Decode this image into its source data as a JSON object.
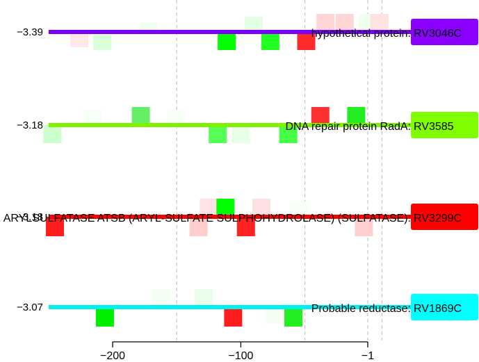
{
  "chart_data": {
    "type": "bar",
    "x_ticks": [
      {
        "value": -200,
        "label": "−200"
      },
      {
        "value": -100,
        "label": "−100"
      },
      {
        "value": -1,
        "label": "−1"
      }
    ],
    "xlim": [
      -245,
      30
    ],
    "dashed_lines_x": [
      -150,
      -50,
      -1,
      10
    ],
    "rows": [
      {
        "score": "−3.39",
        "label": "hypothetical protein: RV3046C",
        "color": "#8B00FF",
        "line_color": "#7B00FF",
        "bars": [
          {
            "x": -172,
            "h": 0.35,
            "fill": "#f1fff1",
            "alpha": 1
          },
          {
            "x": -90,
            "h": 0.55,
            "fill": "#e2ffe2",
            "alpha": 1
          },
          {
            "x": -34,
            "h": 0.65,
            "fill": "#ffd6d6",
            "alpha": 1
          },
          {
            "x": -19,
            "h": 0.65,
            "fill": "#ffd6d6",
            "alpha": 1
          },
          {
            "x": -1,
            "h": 0.65,
            "fill": "#efffef",
            "alpha": 1
          },
          {
            "x": 8,
            "h": 0.65,
            "fill": "#ffe2e2",
            "alpha": 1
          },
          {
            "x": -226,
            "h": -0.55,
            "fill": "#ffe8e8",
            "alpha": 1
          },
          {
            "x": -208,
            "h": -0.65,
            "fill": "#d9ffd9",
            "alpha": 1
          },
          {
            "x": -111,
            "h": -0.65,
            "fill": "#00ff00",
            "alpha": 1
          },
          {
            "x": -77,
            "h": -0.65,
            "fill": "#22ff22",
            "alpha": 1
          },
          {
            "x": -49,
            "h": -0.65,
            "fill": "#ff2a2a",
            "alpha": 1
          }
        ]
      },
      {
        "score": "−3.18",
        "label": "DNA repair protein RadA: RV3585",
        "color": "#7FFF00",
        "line_color": "#80F200",
        "bars": [
          {
            "x": -216,
            "h": 0.55,
            "fill": "#f6fff6",
            "alpha": 1
          },
          {
            "x": -178,
            "h": 0.65,
            "fill": "#66ee66",
            "alpha": 1
          },
          {
            "x": -150,
            "h": 0.55,
            "fill": "#f7fff7",
            "alpha": 1
          },
          {
            "x": -38,
            "h": 0.65,
            "fill": "#ff3030",
            "alpha": 1
          },
          {
            "x": -10,
            "h": 0.65,
            "fill": "#22ee22",
            "alpha": 1
          },
          {
            "x": -247,
            "h": -0.65,
            "fill": "#ccffcc",
            "alpha": 1
          },
          {
            "x": -118,
            "h": -0.65,
            "fill": "#55ff55",
            "alpha": 1
          },
          {
            "x": -100,
            "h": -0.65,
            "fill": "#e6ffe6",
            "alpha": 1
          },
          {
            "x": -63,
            "h": -0.65,
            "fill": "#44ff44",
            "alpha": 1
          }
        ]
      },
      {
        "score": "−3.18",
        "label": "ARYLSULFATASE ATSB (ARYL-SULFATE SULPHOHYDROLASE) (SULFATASE): RV3299C",
        "color": "#FF0000",
        "line_color": "#FF0000",
        "bars": [
          {
            "x": -125,
            "h": 0.65,
            "fill": "#ffe2e2",
            "alpha": 1
          },
          {
            "x": -112,
            "h": 0.65,
            "fill": "#00ff00",
            "alpha": 1
          },
          {
            "x": -84,
            "h": 0.65,
            "fill": "#ffe0e0",
            "alpha": 1
          },
          {
            "x": -55,
            "h": 0.55,
            "fill": "#f8fff8",
            "alpha": 1
          },
          {
            "x": -245,
            "h": -0.7,
            "fill": "#ff1e1e",
            "alpha": 1
          },
          {
            "x": -133,
            "h": -0.7,
            "fill": "#ffcccc",
            "alpha": 1
          },
          {
            "x": -96,
            "h": -0.7,
            "fill": "#ff2222",
            "alpha": 1
          },
          {
            "x": -4,
            "h": -0.7,
            "fill": "#ffcfcf",
            "alpha": 1
          }
        ]
      },
      {
        "score": "−3.07",
        "label": "Probable reductase: RV1869C",
        "color": "#00FFFF",
        "line_color": "#00F0F0",
        "bars": [
          {
            "x": -162,
            "h": 0.65,
            "fill": "#f2fff2",
            "alpha": 1
          },
          {
            "x": -129,
            "h": 0.65,
            "fill": "#eaffea",
            "alpha": 1
          },
          {
            "x": -206,
            "h": -0.7,
            "fill": "#00ee00",
            "alpha": 1
          },
          {
            "x": -106,
            "h": -0.7,
            "fill": "#ff1e1e",
            "alpha": 1
          },
          {
            "x": -74,
            "h": -0.6,
            "fill": "#f4fff4",
            "alpha": 1
          },
          {
            "x": -59,
            "h": -0.7,
            "fill": "#22ee22",
            "alpha": 1
          }
        ]
      }
    ]
  }
}
